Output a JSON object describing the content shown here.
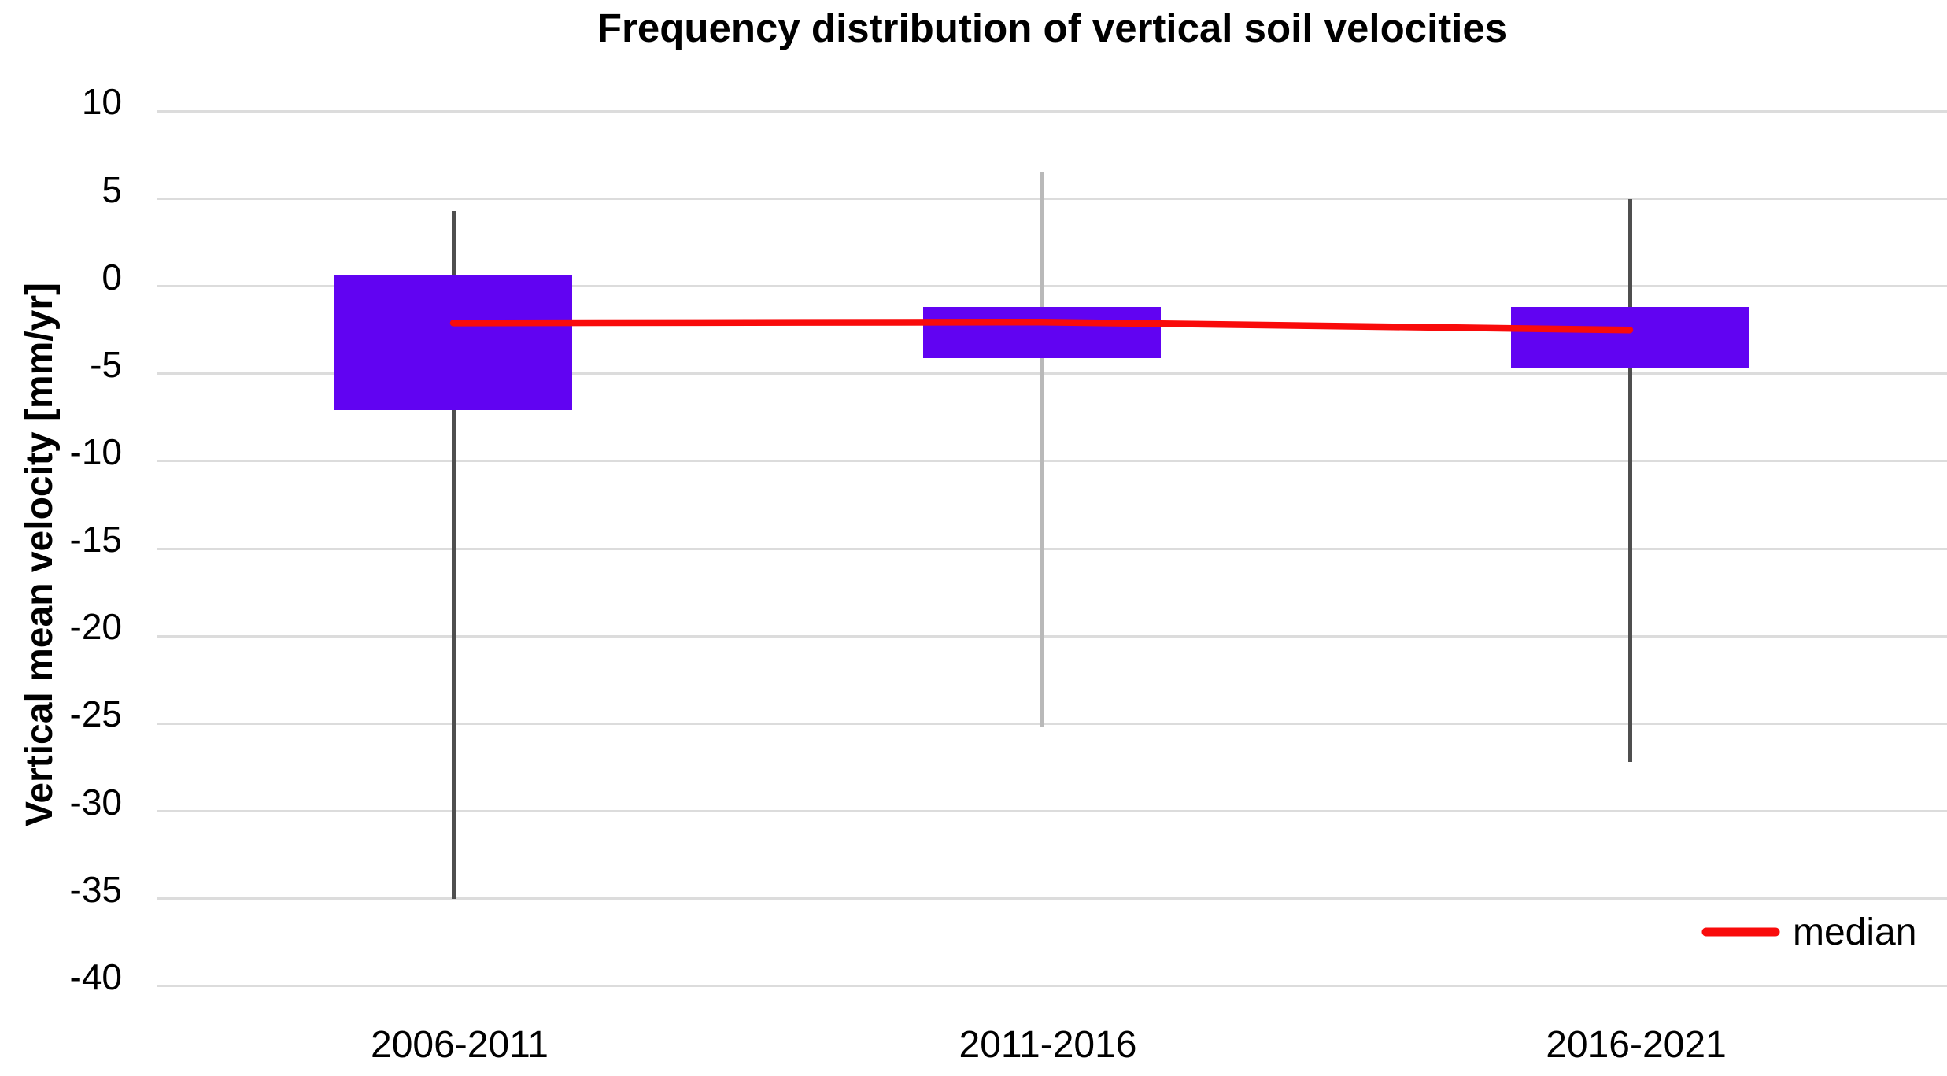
{
  "chart_data": {
    "type": "boxplot",
    "title": "Frequency distribution of vertical soil velocities",
    "ylabel": "Vertical mean velocity [mm/yr]",
    "xlabel": "",
    "categories": [
      "2006-2011",
      "2011-2016",
      "2016-2021"
    ],
    "y_ticks": [
      10,
      5,
      0,
      -5,
      -10,
      -15,
      -20,
      -25,
      -30,
      -35,
      -40
    ],
    "ylim": [
      -40,
      10
    ],
    "grid": true,
    "legend": {
      "label": "median",
      "position": "bottom-right"
    },
    "boxes": [
      {
        "category": "2006-2011",
        "box_top": 0.65,
        "box_bottom": -7.1,
        "whisker_high": 4.3,
        "whisker_low": -35.0,
        "median": -2.1
      },
      {
        "category": "2011-2016",
        "box_top": -1.2,
        "box_bottom": -4.1,
        "whisker_high": 6.5,
        "whisker_low": -25.2,
        "median": -2.05
      },
      {
        "category": "2016-2021",
        "box_top": -1.2,
        "box_bottom": -4.7,
        "whisker_high": 5.0,
        "whisker_low": -27.2,
        "median": -2.5
      }
    ],
    "median_series": [
      -2.1,
      -2.05,
      -2.5
    ]
  },
  "colors": {
    "box_fill": "#6103f2",
    "median_line": "#f90b0b",
    "whisker_colors": [
      "#4f4f4f",
      "#b9b9b9",
      "#4f4f4f"
    ],
    "gridline": "#dcdcdc",
    "text": "#000000",
    "background": "#ffffff"
  }
}
